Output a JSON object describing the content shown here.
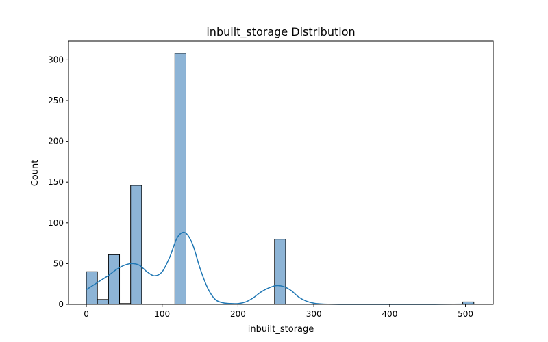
{
  "chart_data": {
    "type": "bar",
    "title": "inbuilt_storage Distribution",
    "xlabel": "inbuilt_storage",
    "ylabel": "Count",
    "xlim": [
      -23.5,
      536.5
    ],
    "ylim": [
      0,
      323
    ],
    "xticks": [
      0,
      100,
      200,
      300,
      400,
      500
    ],
    "yticks": [
      0,
      50,
      100,
      150,
      200,
      250,
      300
    ],
    "grid": false,
    "legend": "none",
    "bin_edges": [
      0,
      14.6,
      29.2,
      43.8,
      58.4,
      73.0,
      87.6,
      102.2,
      116.8,
      131.4,
      146.0,
      160.6,
      175.2,
      189.8,
      204.4,
      219.0,
      233.6,
      248.2,
      262.8,
      277.4,
      292.0,
      306.6,
      321.2,
      335.8,
      350.4,
      365.0,
      379.6,
      394.2,
      408.8,
      423.4,
      438.0,
      452.6,
      467.2,
      481.8,
      496.4,
      511.0
    ],
    "counts": [
      40,
      6,
      61,
      1,
      146,
      0,
      0,
      0,
      308,
      0,
      0,
      0,
      0,
      0,
      0,
      0,
      0,
      80,
      0,
      0,
      0,
      0,
      0,
      0,
      0,
      0,
      0,
      0,
      0,
      0,
      0,
      0,
      0,
      0,
      3
    ],
    "kde": {
      "x": [
        0,
        10,
        20,
        30,
        40,
        50,
        60,
        70,
        80,
        90,
        100,
        110,
        120,
        130,
        140,
        150,
        160,
        170,
        180,
        190,
        200,
        210,
        220,
        230,
        240,
        250,
        260,
        270,
        280,
        290,
        300,
        310,
        320,
        340,
        360,
        400,
        450,
        500,
        511
      ],
      "y": [
        18,
        24,
        30,
        36,
        43,
        48,
        50,
        48,
        40,
        35,
        40,
        58,
        82,
        88,
        74,
        44,
        20,
        6,
        2,
        1,
        1,
        3,
        8,
        15,
        20,
        23,
        22,
        17,
        9,
        4,
        1.5,
        0.5,
        0.2,
        0,
        0,
        0,
        0,
        0.3,
        0.5
      ]
    },
    "colors": {
      "bar_fill": "#8db4d6",
      "bar_edge": "#000000",
      "kde_line": "#1f77b4"
    }
  }
}
